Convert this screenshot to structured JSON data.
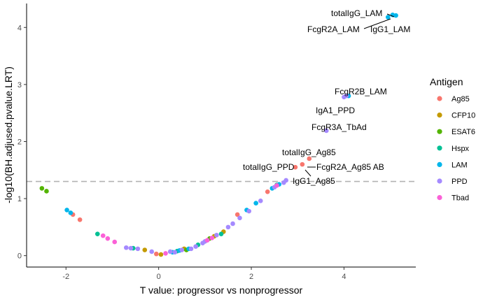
{
  "chart_data": {
    "type": "scatter",
    "xlabel": "T value: progressor vs nonprogressor",
    "ylabel": "-log10(BH.adjused.pvalue.LRT)",
    "xlim": [
      -2.85,
      5.55
    ],
    "ylim": [
      -0.2,
      4.42
    ],
    "x_ticks": [
      -2,
      0,
      2,
      4
    ],
    "y_ticks": [
      0,
      1,
      2,
      3,
      4
    ],
    "grid": false,
    "threshold_line": 1.3,
    "legend": {
      "title": "Antigen",
      "placement": "right",
      "entries": [
        {
          "name": "Ag85",
          "color": "#F8766D"
        },
        {
          "name": "CFP10",
          "color": "#C49A00"
        },
        {
          "name": "ESAT6",
          "color": "#53B400"
        },
        {
          "name": "Hspx",
          "color": "#00C094"
        },
        {
          "name": "LAM",
          "color": "#00B6EB"
        },
        {
          "name": "PPD",
          "color": "#A58AFF"
        },
        {
          "name": "Tbad",
          "color": "#FB61D7"
        }
      ]
    },
    "series": [
      {
        "name": "Ag85",
        "points": [
          [
            -1.85,
            0.72
          ],
          [
            -1.7,
            0.63
          ],
          [
            -0.05,
            0.03
          ],
          [
            1.7,
            0.72
          ],
          [
            2.35,
            1.12
          ],
          [
            2.95,
            1.55
          ],
          [
            3.1,
            1.6
          ],
          [
            3.25,
            1.7
          ]
        ]
      },
      {
        "name": "CFP10",
        "points": [
          [
            -0.3,
            0.1
          ],
          [
            0.05,
            0.02
          ],
          [
            0.55,
            0.12
          ],
          [
            1.2,
            0.34
          ],
          [
            1.4,
            0.42
          ]
        ]
      },
      {
        "name": "ESAT6",
        "points": [
          [
            -2.52,
            1.18
          ],
          [
            -2.42,
            1.13
          ],
          [
            0.6,
            0.1
          ],
          [
            1.1,
            0.3
          ]
        ]
      },
      {
        "name": "Hspx",
        "points": [
          [
            -1.32,
            0.38
          ],
          [
            -0.55,
            0.13
          ],
          [
            0.4,
            0.08
          ],
          [
            0.85,
            0.19
          ],
          [
            1.35,
            0.38
          ],
          [
            2.55,
            1.24
          ]
        ]
      },
      {
        "name": "LAM",
        "points": [
          [
            -1.98,
            0.8
          ],
          [
            -1.9,
            0.75
          ],
          [
            0.3,
            0.06
          ],
          [
            0.45,
            0.09
          ],
          [
            0.65,
            0.12
          ],
          [
            1.9,
            0.8
          ],
          [
            2.1,
            0.92
          ],
          [
            2.45,
            1.18
          ],
          [
            2.6,
            1.25
          ],
          [
            4.1,
            2.8
          ],
          [
            4.95,
            4.18
          ],
          [
            5.05,
            4.22
          ],
          [
            5.12,
            4.21
          ]
        ]
      },
      {
        "name": "PPD",
        "points": [
          [
            -0.7,
            0.14
          ],
          [
            -0.6,
            0.13
          ],
          [
            -0.45,
            0.12
          ],
          [
            -0.15,
            0.07
          ],
          [
            0.25,
            0.07
          ],
          [
            0.35,
            0.06
          ],
          [
            0.5,
            0.1
          ],
          [
            0.7,
            0.12
          ],
          [
            0.8,
            0.16
          ],
          [
            0.95,
            0.22
          ],
          [
            1.0,
            0.25
          ],
          [
            1.25,
            0.36
          ],
          [
            1.5,
            0.5
          ],
          [
            1.6,
            0.56
          ],
          [
            1.75,
            0.66
          ],
          [
            1.95,
            0.78
          ],
          [
            2.2,
            0.96
          ],
          [
            2.5,
            1.2
          ],
          [
            2.7,
            1.28
          ],
          [
            2.75,
            1.32
          ],
          [
            4.0,
            2.78
          ],
          [
            4.05,
            2.8
          ],
          [
            3.62,
            2.19
          ]
        ]
      },
      {
        "name": "Tbad",
        "points": [
          [
            -1.2,
            0.35
          ],
          [
            -1.1,
            0.3
          ],
          [
            -0.95,
            0.24
          ],
          [
            0.15,
            0.04
          ],
          [
            1.05,
            0.27
          ],
          [
            1.15,
            0.31
          ],
          [
            2.55,
            1.23
          ]
        ]
      }
    ],
    "annotations": [
      {
        "text": "totalIgG_LAM",
        "x": 5.05,
        "y": 4.22
      },
      {
        "text": "FcgR2A_LAM",
        "x": 4.95,
        "y": 4.18
      },
      {
        "text": "IgG1_LAM",
        "x": 5.12,
        "y": 4.21
      },
      {
        "text": "FcgR2B_LAM",
        "x": 4.1,
        "y": 2.8
      },
      {
        "text": "IgA1_PPD",
        "x": 4.0,
        "y": 2.78
      },
      {
        "text": "FcgR3A_TbAd",
        "x": 3.62,
        "y": 2.19
      },
      {
        "text": "totalIgG_Ag85",
        "x": 3.25,
        "y": 1.7
      },
      {
        "text": "totalIgG_PPD",
        "x": 3.0,
        "y": 1.6
      },
      {
        "text": "FcgR2A_Ag85 AB",
        "x": 3.12,
        "y": 1.6
      },
      {
        "text": "IgG1_Ag85",
        "x": 3.1,
        "y": 1.55
      }
    ]
  }
}
